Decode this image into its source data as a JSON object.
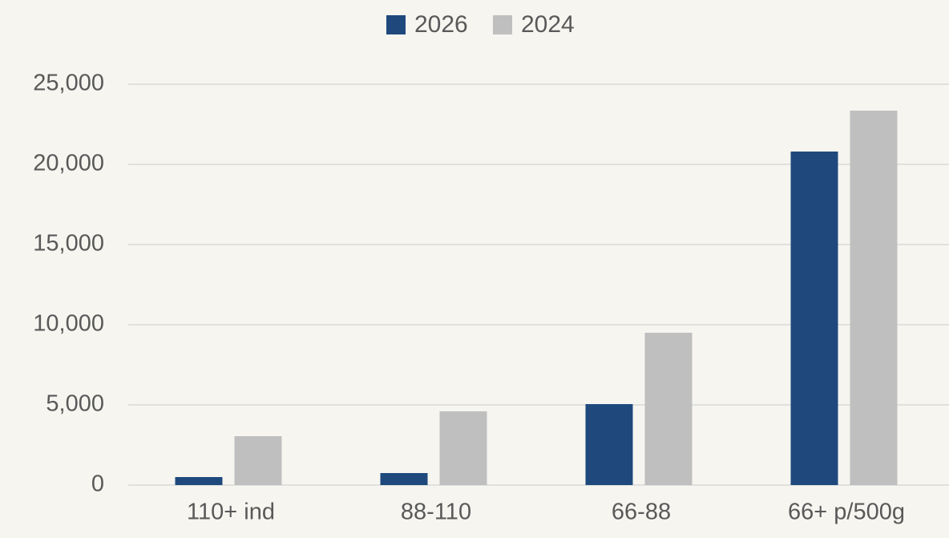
{
  "chart_data": {
    "type": "bar",
    "categories": [
      "110+ ind",
      "88-110",
      "66-88",
      "66+ p/500g"
    ],
    "series": [
      {
        "name": "2026",
        "color": "#1f497d",
        "values": [
          500,
          750,
          5050,
          20800
        ]
      },
      {
        "name": "2024",
        "color": "#bfbfbf",
        "values": [
          3050,
          4600,
          9500,
          23350
        ]
      }
    ],
    "ylim": [
      0,
      25000
    ],
    "yticks": [
      0,
      {
        "value": 5000,
        "label": "5,000"
      },
      {
        "value": 10000,
        "label": "10,000"
      },
      {
        "value": 15000,
        "label": "15,000"
      },
      {
        "value": 20000,
        "label": "20,000"
      },
      {
        "value": 25000,
        "label": "25,000"
      }
    ],
    "grid": true,
    "legend": "top"
  }
}
